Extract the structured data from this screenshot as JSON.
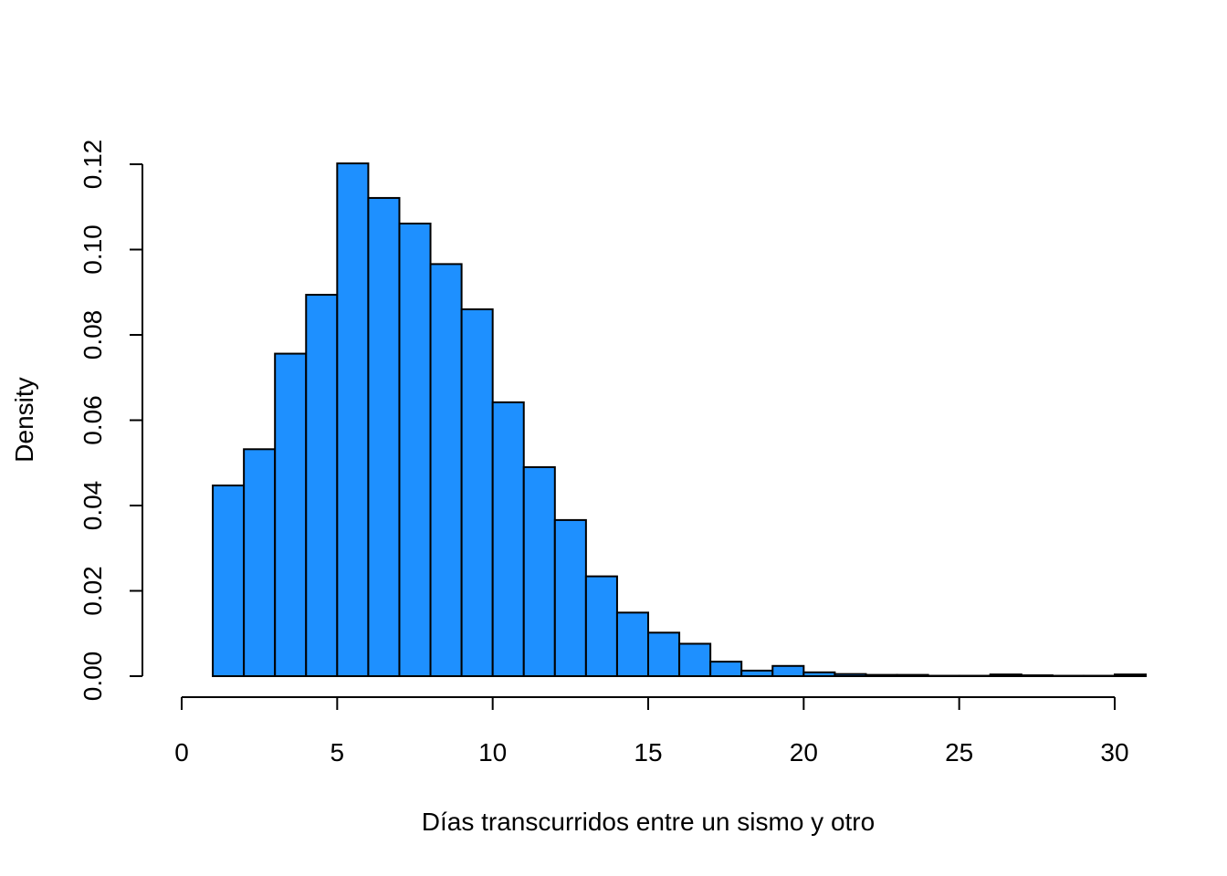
{
  "chart_data": {
    "type": "bar",
    "subtype": "histogram",
    "title": "",
    "xlabel": "Días transcurridos entre un sismo y otro",
    "ylabel": "Density",
    "xlim": [
      0,
      31
    ],
    "ylim": [
      0,
      0.12
    ],
    "x_ticks": [
      0,
      5,
      10,
      15,
      20,
      25,
      30
    ],
    "y_ticks": [
      0.0,
      0.02,
      0.04,
      0.06,
      0.08,
      0.1,
      0.12
    ],
    "x_tick_labels": [
      "0",
      "5",
      "10",
      "15",
      "20",
      "25",
      "30"
    ],
    "y_tick_labels": [
      "0.00",
      "0.02",
      "0.04",
      "0.06",
      "0.08",
      "0.10",
      "0.12"
    ],
    "bin_edges": [
      1,
      2,
      3,
      4,
      5,
      6,
      7,
      8,
      9,
      10,
      11,
      12,
      13,
      14,
      15,
      16,
      17,
      18,
      19,
      20,
      21,
      22,
      23,
      24,
      25,
      26,
      27,
      28,
      29,
      30,
      31
    ],
    "values": [
      0.0447,
      0.0532,
      0.0756,
      0.0894,
      0.1202,
      0.1121,
      0.1061,
      0.0966,
      0.086,
      0.0642,
      0.049,
      0.0366,
      0.0234,
      0.0149,
      0.0102,
      0.0076,
      0.0034,
      0.0013,
      0.0024,
      0.0009,
      0.0005,
      0.0003,
      0.0003,
      0.0001,
      0.0001,
      0.0004,
      0.0002,
      0.0001,
      0.0001,
      0.0004
    ],
    "bar_color": "#1E90FF",
    "grid": false
  }
}
